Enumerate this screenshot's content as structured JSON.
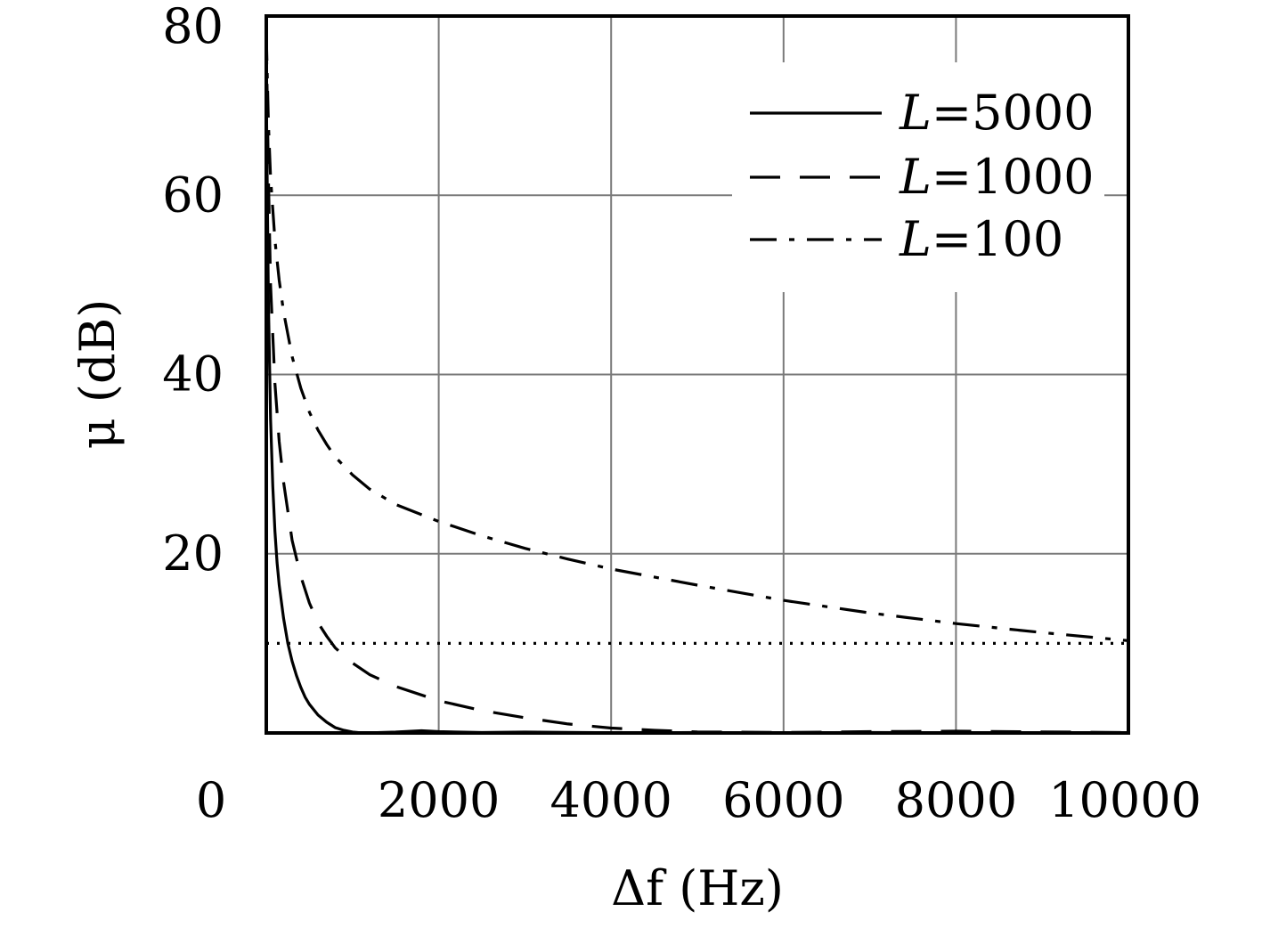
{
  "chart_data": {
    "type": "line",
    "xlabel": "Δf (Hz)",
    "ylabel": "μ (dB)",
    "xlim": [
      0,
      10000
    ],
    "ylim": [
      0,
      80
    ],
    "xticks": [
      0,
      2000,
      4000,
      6000,
      8000,
      10000
    ],
    "xtick_labels": [
      "0",
      "2000",
      "4000",
      "6000",
      "8000",
      "10000"
    ],
    "yticks": [
      20,
      40,
      60,
      80
    ],
    "ytick_labels": [
      "20",
      "40",
      "60",
      "80"
    ],
    "grid": true,
    "legend_position": "top-right",
    "series": [
      {
        "name": "L=5000",
        "legend_var": "L",
        "legend_value": "=5000",
        "style": "solid",
        "x": [
          0,
          25,
          50,
          75,
          100,
          125,
          150,
          200,
          250,
          300,
          350,
          400,
          450,
          500,
          600,
          700,
          800,
          900,
          1000,
          1100,
          1200,
          1500,
          1800,
          2000,
          2500,
          3000,
          4000,
          5000,
          6000,
          7000,
          8000,
          9000,
          10000
        ],
        "y": [
          72,
          48,
          35,
          27.5,
          22.5,
          19,
          16.5,
          12.8,
          10,
          8,
          6.4,
          5.1,
          4,
          3.2,
          2,
          1.2,
          0.6,
          0.3,
          0.1,
          0.02,
          0.02,
          0.1,
          0.25,
          0.15,
          0.05,
          0.1,
          0.03,
          0.05,
          0.02,
          0.05,
          0.03,
          0.04,
          0.02
        ]
      },
      {
        "name": "L=1000",
        "legend_var": "L",
        "legend_value": "=1000",
        "style": "dashed",
        "x": [
          0,
          25,
          50,
          100,
          150,
          200,
          300,
          400,
          500,
          600,
          700,
          800,
          1000,
          1200,
          1500,
          2000,
          2500,
          3000,
          3500,
          4000,
          4500,
          5000,
          6000,
          7000,
          8000,
          9000,
          10000
        ],
        "y": [
          78,
          62,
          50,
          39,
          32.5,
          28,
          21.5,
          17.5,
          14.5,
          12.3,
          10.8,
          9.5,
          7.8,
          6.5,
          5.2,
          3.6,
          2.5,
          1.7,
          1.0,
          0.55,
          0.3,
          0.12,
          0.05,
          0.15,
          0.2,
          0.12,
          0.05
        ]
      },
      {
        "name": "L=100",
        "legend_var": "L",
        "legend_value": "=100",
        "style": "dashdot",
        "x": [
          0,
          25,
          50,
          100,
          150,
          200,
          300,
          400,
          500,
          600,
          700,
          800,
          1000,
          1200,
          1500,
          2000,
          2500,
          3000,
          3500,
          4000,
          5000,
          6000,
          7000,
          8000,
          9000,
          10000
        ],
        "y": [
          78,
          68,
          62,
          55,
          50.5,
          47,
          42,
          38.5,
          35.8,
          33.8,
          32.2,
          30.8,
          28.8,
          27.2,
          25.5,
          23.6,
          22,
          20.6,
          19.4,
          18.3,
          16.5,
          14.8,
          13.4,
          12.2,
          11.2,
          10.3
        ]
      }
    ],
    "reference_lines": [
      {
        "style": "dotted",
        "y": 10
      }
    ]
  }
}
